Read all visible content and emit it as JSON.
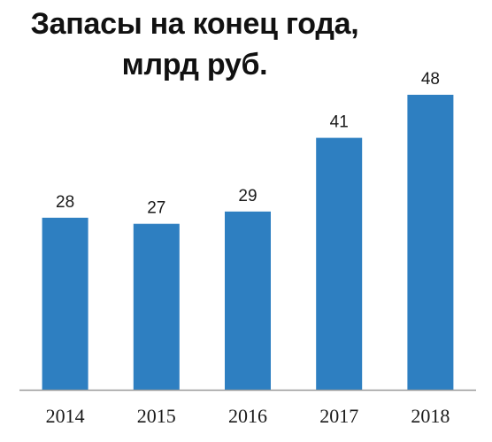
{
  "chart_data": {
    "type": "bar",
    "title_line1": "Запасы на конец года,",
    "title_line2": "млрд руб.",
    "categories": [
      "2014",
      "2015",
      "2016",
      "2017",
      "2018"
    ],
    "values": [
      28,
      27,
      29,
      41,
      48
    ],
    "xlabel": "",
    "ylabel": "",
    "ylim": [
      0,
      53
    ],
    "grid": false,
    "legend": "none",
    "bar_color": "#2e7fc1",
    "axis_color": "#9a9a9a"
  }
}
